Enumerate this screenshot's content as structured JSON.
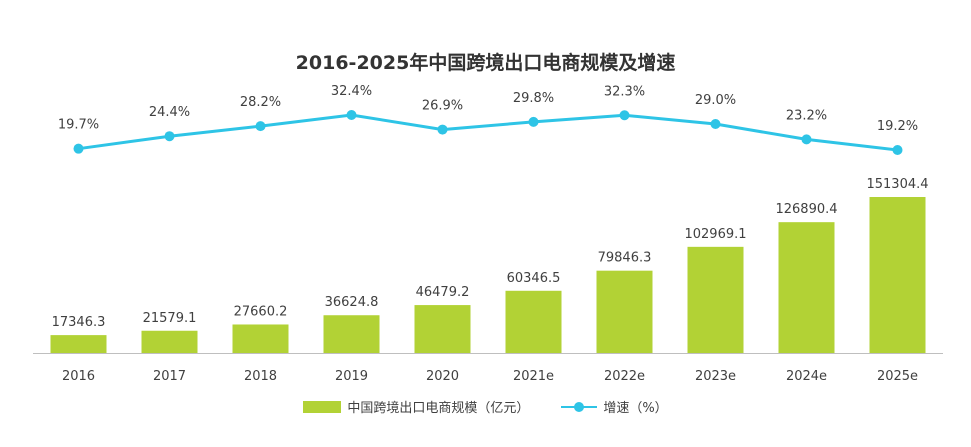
{
  "chart_data": {
    "type": "bar",
    "title": "2016-2025年中国跨境出口电商规模及增速",
    "categories": [
      "2016",
      "2017",
      "2018",
      "2019",
      "2020",
      "2021e",
      "2022e",
      "2023e",
      "2024e",
      "2025e"
    ],
    "series": [
      {
        "name": "中国跨境出口电商规模（亿元）",
        "type": "bar",
        "color": "#b2d235",
        "values": [
          17346.3,
          21579.1,
          27660.2,
          36624.8,
          46479.2,
          60346.5,
          79846.3,
          102969.1,
          126890.4,
          151304.4
        ],
        "labels": [
          "17346.3",
          "21579.1",
          "27660.2",
          "36624.8",
          "46479.2",
          "60346.5",
          "79846.3",
          "102969.1",
          "126890.4",
          "151304.4"
        ]
      },
      {
        "name": "增速（%）",
        "type": "line",
        "color": "#2ec4e6",
        "values": [
          19.7,
          24.4,
          28.2,
          32.4,
          26.9,
          29.8,
          32.3,
          29.0,
          23.2,
          19.2
        ],
        "labels": [
          "19.7%",
          "24.4%",
          "28.2%",
          "32.4%",
          "26.9%",
          "29.8%",
          "32.3%",
          "29.0%",
          "23.2%",
          "19.2%"
        ]
      }
    ],
    "legend_position": "bottom",
    "grid": false
  }
}
